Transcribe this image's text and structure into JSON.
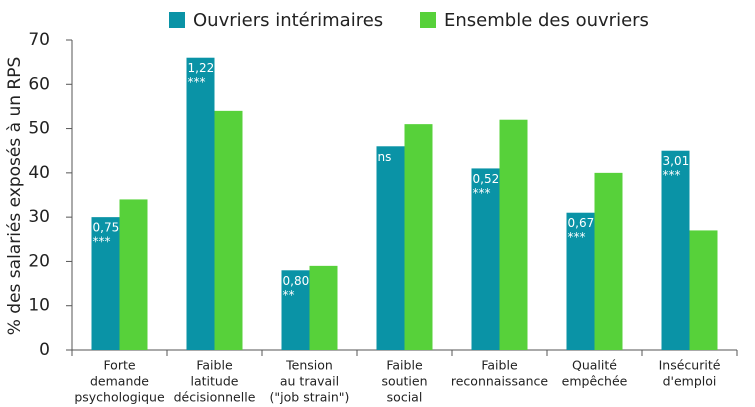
{
  "chart_data": {
    "type": "bar",
    "y_label": "% des salariés exposés à un RPS",
    "categories": [
      [
        "Forte",
        "demande",
        "psychologique"
      ],
      [
        "Faible",
        "latitude",
        "décisionnelle"
      ],
      [
        "Tension",
        "au travail",
        "(\"job strain\")"
      ],
      [
        "Faible",
        "soutien",
        "social"
      ],
      [
        "Faible",
        "reconnaissance"
      ],
      [
        "Qualité",
        "empêchée"
      ],
      [
        "Insécurité",
        "d'emploi"
      ]
    ],
    "series": [
      {
        "name": "Ouvriers intérimaires",
        "color": "#0a93a6",
        "values": [
          30,
          66,
          18,
          46,
          41,
          31,
          45
        ],
        "annotations": [
          [
            "0,75",
            "***"
          ],
          [
            "1,22",
            "***"
          ],
          [
            "0,80",
            "**"
          ],
          [
            "ns"
          ],
          [
            "0,52",
            "***"
          ],
          [
            "0,67",
            "***"
          ],
          [
            "3,01",
            "***"
          ]
        ]
      },
      {
        "name": "Ensemble des ouvriers",
        "color": "#57d13a",
        "values": [
          34,
          54,
          19,
          51,
          52,
          40,
          27
        ]
      }
    ],
    "ylim": [
      0,
      70
    ],
    "yticks": [
      0,
      10,
      20,
      30,
      40,
      50,
      60,
      70
    ],
    "legend": "top"
  }
}
